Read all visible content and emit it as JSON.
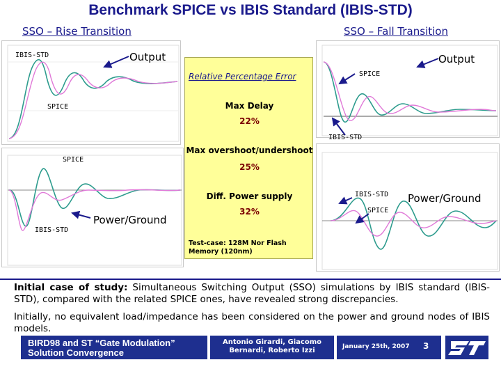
{
  "title": "Benchmark SPICE vs IBIS Standard (IBIS-STD)",
  "subtitle_left": "SSO – Rise Transition",
  "subtitle_right": "SSO – Fall Transition",
  "labels": {
    "ibis_std": "IBIS-STD",
    "spice": "SPICE",
    "output": "Output",
    "power_ground": "Power/Ground"
  },
  "error_box": {
    "heading": "Relative Percentage Error",
    "max_delay_label": "Max Delay",
    "max_delay_value": "22%",
    "overshoot_label": "Max overshoot/undershoot",
    "overshoot_value": "25%",
    "power_label": "Diff. Power supply",
    "power_value": "32%",
    "testcase_line1": "Test-case: 128M Nor Flash",
    "testcase_line2": "Memory (120nm)"
  },
  "paragraph1_bold": "Initial case of study:",
  "paragraph1_rest": " Simultaneous Switching Output (SSO) simulations by IBIS standard (IBIS-STD), compared with the related SPICE ones, have revealed strong discrepancies.",
  "paragraph2": "Initially, no equivalent load/impedance has been considered on the power and ground nodes of IBIS models.",
  "footer": {
    "bird_line1": "BIRD98 and ST “Gate Modulation”",
    "bird_line2": "Solution Convergence",
    "authors_line1": "Antonio Girardi, Giacomo",
    "authors_line2": "Bernardi, Roberto Izzi",
    "date": "January 25th, 2007",
    "page": "3",
    "logo": "st-logo"
  },
  "colors": {
    "title": "#1a1a8c",
    "spice_wave": "#2e9c8e",
    "ibis_wave": "#e07ad8",
    "error_box_bg": "#ffff99",
    "footer_bg": "#1e2f8f"
  }
}
